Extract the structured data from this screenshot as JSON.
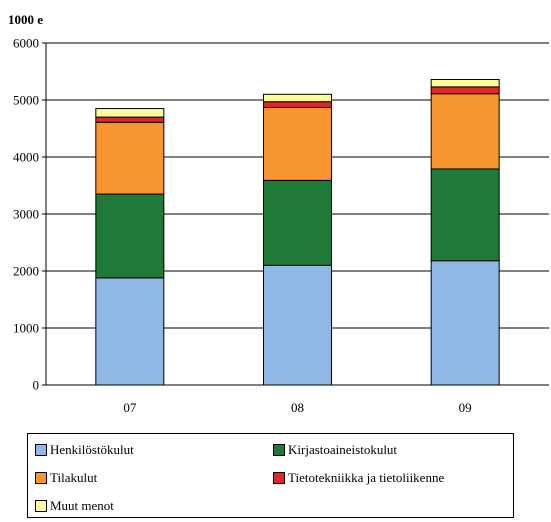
{
  "chart_data": {
    "type": "bar",
    "stacked": true,
    "unit_label": "1000 e",
    "categories": [
      "07",
      "08",
      "09"
    ],
    "ylim": [
      0,
      6000
    ],
    "yticks": [
      0,
      1000,
      2000,
      3000,
      4000,
      5000,
      6000
    ],
    "grid": true,
    "legend_position": "bottom",
    "series": [
      {
        "name": "Henkilöstökulut",
        "color": "#8fb8e6",
        "values": [
          1880,
          2100,
          2180
        ]
      },
      {
        "name": "Kirjastoaineistokulut",
        "color": "#1f7a3a",
        "values": [
          1470,
          1490,
          1610
        ]
      },
      {
        "name": "Tilakulut",
        "color": "#f7952e",
        "values": [
          1260,
          1280,
          1320
        ]
      },
      {
        "name": "Tietotekniikka ja tietoliikenne",
        "color": "#e02828",
        "values": [
          90,
          100,
          120
        ]
      },
      {
        "name": "Muut menot",
        "color": "#ffff99",
        "values": [
          150,
          130,
          130
        ]
      }
    ]
  }
}
